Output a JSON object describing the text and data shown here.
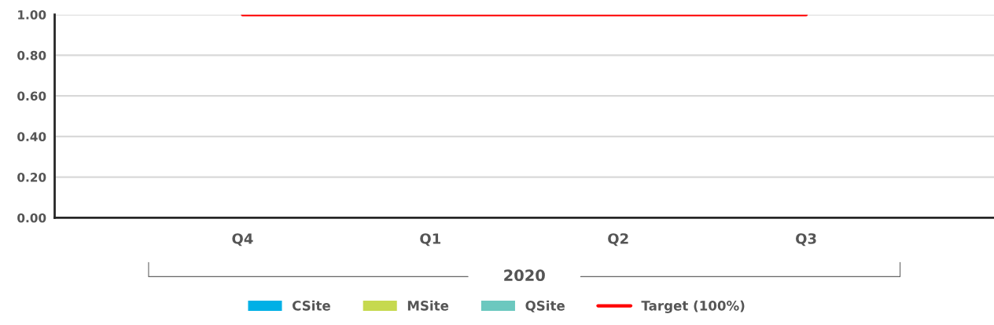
{
  "chart_data": {
    "type": "bar",
    "categories": [
      "Q4",
      "Q1",
      "Q2",
      "Q3"
    ],
    "series": [
      {
        "name": "CSite",
        "color": "#00b0e6",
        "values": [
          null,
          null,
          null,
          null
        ]
      },
      {
        "name": "MSite",
        "color": "#c6d94f",
        "values": [
          null,
          null,
          null,
          null
        ]
      },
      {
        "name": "QSite",
        "color": "#6cc8bf",
        "values": [
          null,
          null,
          null,
          null
        ]
      },
      {
        "name": "Target (100%)",
        "type": "line",
        "color": "#ff0000",
        "values": [
          1,
          1,
          1,
          1
        ]
      }
    ],
    "annotations": [
      "2020"
    ],
    "ylim": [
      0,
      1
    ],
    "yticks": [
      {
        "value": 0,
        "label": "0.00"
      },
      {
        "value": 0.2,
        "label": "0.20"
      },
      {
        "value": 0.4,
        "label": "0.40"
      },
      {
        "value": 0.6,
        "label": "0.60"
      },
      {
        "value": 0.8,
        "label": "0.80"
      },
      {
        "value": 1,
        "label": "1.00"
      }
    ],
    "grid": "y",
    "legend": "bottom",
    "marker": "none",
    "line_style": "solid"
  }
}
